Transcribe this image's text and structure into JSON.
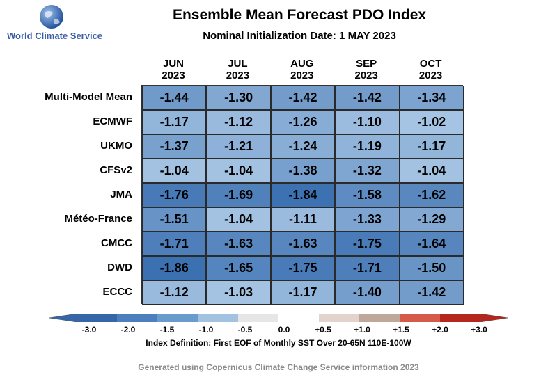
{
  "logo": {
    "text": "World Climate Service"
  },
  "chart_data": {
    "type": "heatmap",
    "title": "Ensemble Mean Forecast PDO Index",
    "subtitle": "Nominal Initialization Date: 1 MAY 2023",
    "columns": [
      {
        "month": "JUN",
        "year": "2023"
      },
      {
        "month": "JUL",
        "year": "2023"
      },
      {
        "month": "AUG",
        "year": "2023"
      },
      {
        "month": "SEP",
        "year": "2023"
      },
      {
        "month": "OCT",
        "year": "2023"
      }
    ],
    "rows": [
      "Multi-Model Mean",
      "ECMWF",
      "UKMO",
      "CFSv2",
      "JMA",
      "Météo-France",
      "CMCC",
      "DWD",
      "ECCC"
    ],
    "values": [
      [
        -1.44,
        -1.3,
        -1.42,
        -1.42,
        -1.34
      ],
      [
        -1.17,
        -1.12,
        -1.26,
        -1.1,
        -1.02
      ],
      [
        -1.37,
        -1.21,
        -1.24,
        -1.19,
        -1.17
      ],
      [
        -1.04,
        -1.04,
        -1.38,
        -1.32,
        -1.04
      ],
      [
        -1.76,
        -1.69,
        -1.84,
        -1.58,
        -1.62
      ],
      [
        -1.51,
        -1.04,
        -1.11,
        -1.33,
        -1.29
      ],
      [
        -1.71,
        -1.63,
        -1.63,
        -1.75,
        -1.64
      ],
      [
        -1.86,
        -1.65,
        -1.75,
        -1.71,
        -1.5
      ],
      [
        -1.12,
        -1.03,
        -1.17,
        -1.4,
        -1.42
      ]
    ],
    "colorbar": {
      "ticks": [
        "-3.0",
        "-2.0",
        "-1.5",
        "-1.0",
        "-0.5",
        "0.0",
        "+0.5",
        "+1.0",
        "+1.5",
        "+2.0",
        "+3.0"
      ],
      "colors": [
        "#3466a8",
        "#4b7fbd",
        "#6b9bcc",
        "#a3c2e0",
        "#e6e6e6",
        "#ffffff",
        "#e2d4cc",
        "#bfa79a",
        "#d65a4a",
        "#c8392e",
        "#b5261e"
      ]
    },
    "index_definition": "Index Definition: First EOF of Monthly SST Over 20-65N 110E-100W"
  },
  "credit": "Generated using Copernicus Climate Change Service information 2023"
}
